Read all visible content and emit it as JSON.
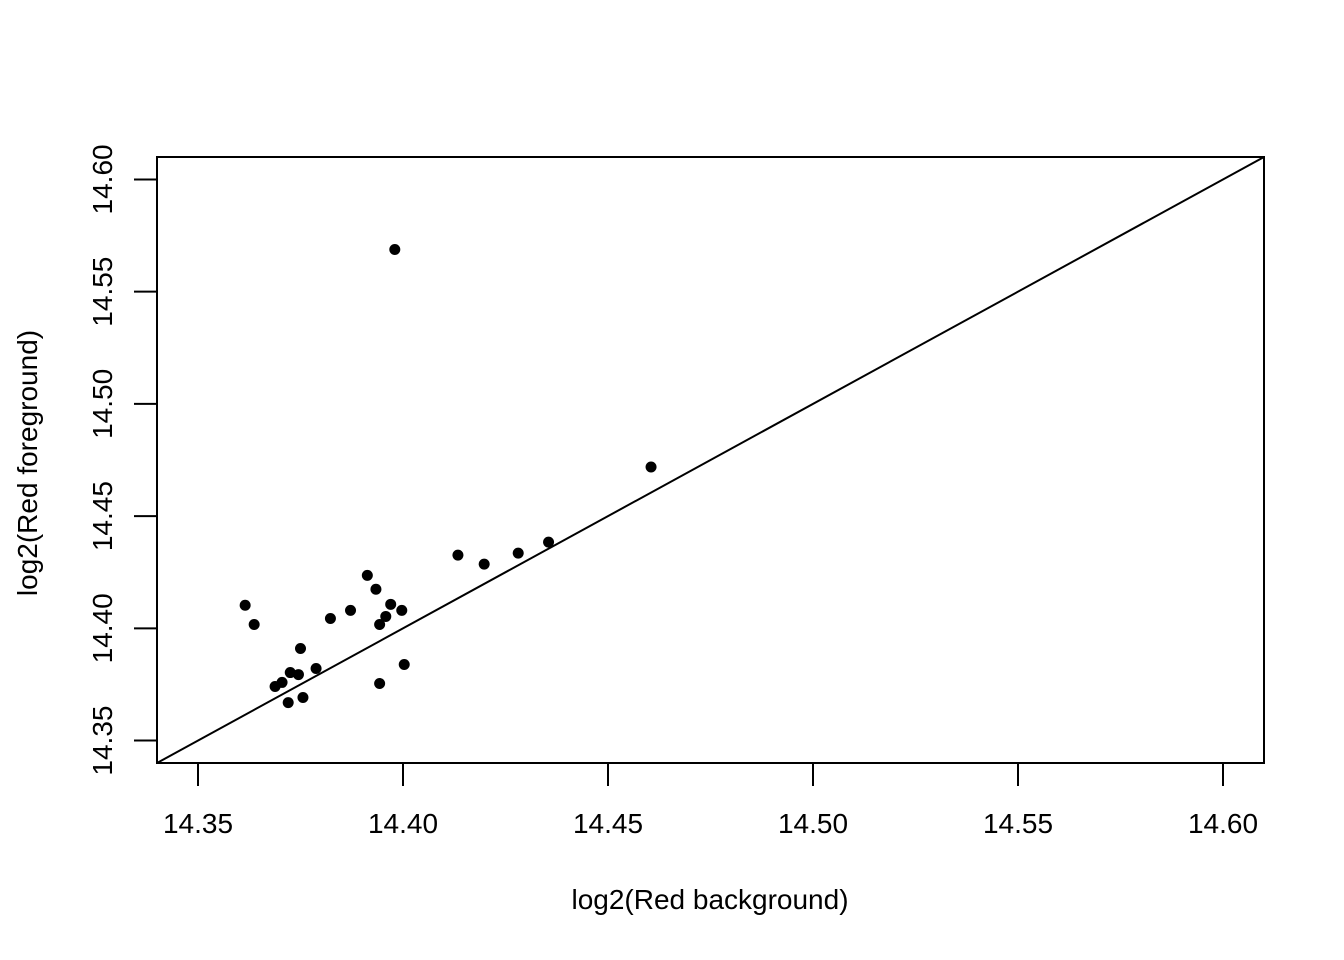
{
  "chart_data": {
    "type": "scatter",
    "title": "",
    "xlabel": "log2(Red background)",
    "ylabel": "log2(Red foreground)",
    "xlim": [
      14.34,
      14.61
    ],
    "ylim": [
      14.34,
      14.61
    ],
    "x_ticks": [
      "14.35",
      "14.40",
      "14.45",
      "14.50",
      "14.55",
      "14.60"
    ],
    "y_ticks": [
      "14.35",
      "14.40",
      "14.45",
      "14.50",
      "14.55",
      "14.60"
    ],
    "grid": false,
    "reference_line": {
      "type": "identity",
      "slope": 1,
      "intercept": 0
    },
    "points": [
      {
        "x": 14.3615,
        "y": 14.4103
      },
      {
        "x": 14.3637,
        "y": 14.4017
      },
      {
        "x": 14.3688,
        "y": 14.3741
      },
      {
        "x": 14.3705,
        "y": 14.3759
      },
      {
        "x": 14.372,
        "y": 14.3669
      },
      {
        "x": 14.3725,
        "y": 14.3803
      },
      {
        "x": 14.3745,
        "y": 14.3794
      },
      {
        "x": 14.375,
        "y": 14.391
      },
      {
        "x": 14.3756,
        "y": 14.3692
      },
      {
        "x": 14.3788,
        "y": 14.3821
      },
      {
        "x": 14.3823,
        "y": 14.4044
      },
      {
        "x": 14.3872,
        "y": 14.408
      },
      {
        "x": 14.3913,
        "y": 14.4236
      },
      {
        "x": 14.3934,
        "y": 14.4174
      },
      {
        "x": 14.3943,
        "y": 14.4017
      },
      {
        "x": 14.3943,
        "y": 14.3754
      },
      {
        "x": 14.3958,
        "y": 14.4053
      },
      {
        "x": 14.397,
        "y": 14.4107
      },
      {
        "x": 14.398,
        "y": 14.5688
      },
      {
        "x": 14.3997,
        "y": 14.408
      },
      {
        "x": 14.4003,
        "y": 14.3839
      },
      {
        "x": 14.4134,
        "y": 14.4326
      },
      {
        "x": 14.4198,
        "y": 14.4286
      },
      {
        "x": 14.4281,
        "y": 14.4335
      },
      {
        "x": 14.4355,
        "y": 14.4384
      },
      {
        "x": 14.4605,
        "y": 14.4719
      }
    ]
  }
}
